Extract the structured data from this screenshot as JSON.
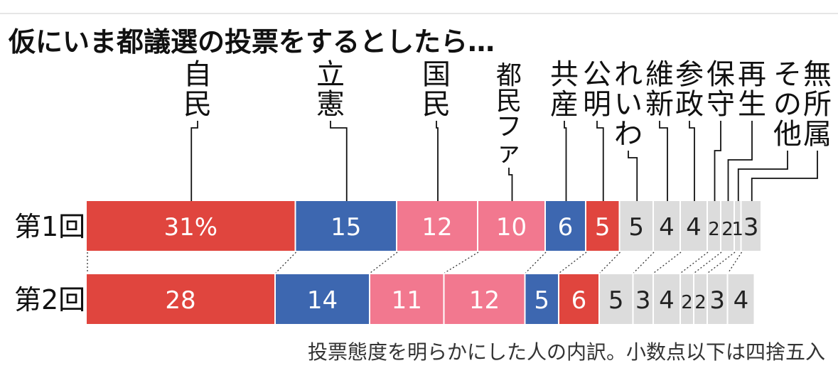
{
  "title": "仮にいま都議選の投票をするとしたら…",
  "footnote": "投票態度を明らかにした人の内訳。小数点以下は四捨五入",
  "colors": {
    "ldp": "#e0453e",
    "cdp": "#3d67b0",
    "pink": "#f2788f",
    "gray": "#dcdcdc",
    "text_light": "#ffffff",
    "text_dark": "#222222"
  },
  "chart_data": {
    "type": "bar",
    "stacked": true,
    "orientation": "horizontal",
    "title": "仮にいま都議選の投票をするとしたら…",
    "categories": [
      "自民",
      "立憲",
      "国民",
      "都民ファ",
      "共産",
      "公明",
      "れいわ",
      "維新",
      "参政",
      "保守",
      "再生",
      "その他",
      "無所属"
    ],
    "category_colors": [
      "#e0453e",
      "#3d67b0",
      "#f2788f",
      "#f2788f",
      "#3d67b0",
      "#e0453e",
      "#dcdcdc",
      "#dcdcdc",
      "#dcdcdc",
      "#dcdcdc",
      "#dcdcdc",
      "#dcdcdc",
      "#dcdcdc"
    ],
    "series": [
      {
        "name": "第1回",
        "values": [
          31,
          15,
          12,
          10,
          6,
          5,
          5,
          4,
          4,
          2,
          2,
          1,
          3
        ],
        "labels": [
          "31%",
          "15",
          "12",
          "10",
          "6",
          "5",
          "5",
          "4",
          "4",
          "2",
          "2",
          "1",
          "3"
        ]
      },
      {
        "name": "第2回",
        "values": [
          28,
          14,
          11,
          12,
          5,
          6,
          5,
          3,
          4,
          2,
          2,
          3,
          4
        ],
        "labels": [
          "28",
          "14",
          "11",
          "12",
          "5",
          "6",
          "5",
          "3",
          "4",
          "2",
          "2",
          "3",
          "4"
        ]
      }
    ]
  }
}
